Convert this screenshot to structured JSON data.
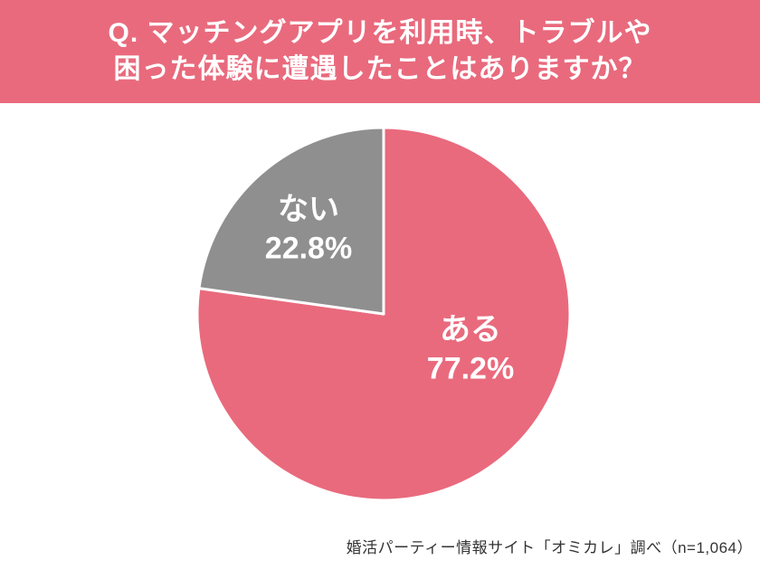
{
  "header": {
    "line1": "Q. マッチングアプリを利用時、トラブルや",
    "line2": "困った体験に遭遇したことはありますか？",
    "bg_color": "#e96a7d",
    "text_color": "#ffffff"
  },
  "chart_data": {
    "type": "pie",
    "title": "Q. マッチングアプリを利用時、トラブルや困った体験に遭遇したことはありますか？",
    "slices": [
      {
        "label": "ある",
        "value": 77.2,
        "display": "77.2%",
        "color": "#e96a7d"
      },
      {
        "label": "ない",
        "value": 22.8,
        "display": "22.8%",
        "color": "#8f8f8f"
      }
    ],
    "start_angle_deg": -90,
    "direction": "clockwise",
    "labels_inside": true,
    "legend_position": "none",
    "slice_divider_color": "#ffffff"
  },
  "footer": {
    "source": "婚活パーティー情報サイト「オミカレ」調べ（n=1,064）"
  }
}
